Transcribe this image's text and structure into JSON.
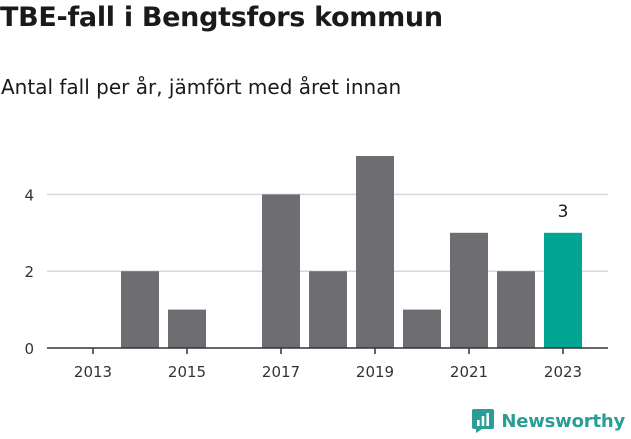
{
  "title": "TBE-fall i Bengtsfors kommun",
  "subtitle": "Antal fall per år, jämfört med året innan",
  "brand": {
    "name": "Newsworthy",
    "color": "#2a9d96",
    "icon": "newsworthy-logo-icon"
  },
  "colors": {
    "bar": "#6e6d72",
    "highlight": "#00a594",
    "grid": "#d8d8d8",
    "axis": "#333333"
  },
  "chart_data": {
    "type": "bar",
    "categories": [
      "2013",
      "2014",
      "2015",
      "2016",
      "2017",
      "2018",
      "2019",
      "2020",
      "2021",
      "2022",
      "2023"
    ],
    "values": [
      0,
      2,
      1,
      0,
      4,
      2,
      5,
      1,
      3,
      2,
      3
    ],
    "highlight_category": "2023",
    "data_labels": [
      {
        "category": "2023",
        "text": "3"
      }
    ],
    "x_tick_labels": [
      "2013",
      "2015",
      "2017",
      "2019",
      "2021",
      "2023"
    ],
    "y_ticks": [
      0,
      2,
      4
    ],
    "ylim": [
      0,
      5
    ],
    "grid": true,
    "title": "TBE-fall i Bengtsfors kommun",
    "subtitle": "Antal fall per år, jämfört med året innan",
    "xlabel": "",
    "ylabel": ""
  }
}
